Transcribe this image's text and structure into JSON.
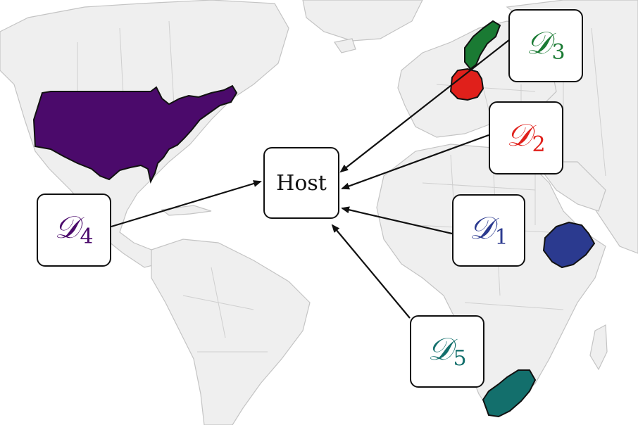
{
  "host": {
    "label": "Host"
  },
  "datasets": [
    {
      "id": "d1",
      "symbol": "𝒟",
      "index": "1",
      "color": "#2b3a8f",
      "region": "Ethiopia"
    },
    {
      "id": "d2",
      "symbol": "𝒟",
      "index": "2",
      "color": "#e0201b",
      "region": "Germany"
    },
    {
      "id": "d3",
      "symbol": "𝒟",
      "index": "3",
      "color": "#1a7a33",
      "region": "Sweden"
    },
    {
      "id": "d4",
      "symbol": "𝒟",
      "index": "4",
      "color": "#4b0a6b",
      "region": "United States"
    },
    {
      "id": "d5",
      "symbol": "𝒟",
      "index": "5",
      "color": "#136f6c",
      "region": "South Africa"
    }
  ],
  "map": {
    "land_color": "#ececec",
    "border_color": "#bdbdbd"
  }
}
